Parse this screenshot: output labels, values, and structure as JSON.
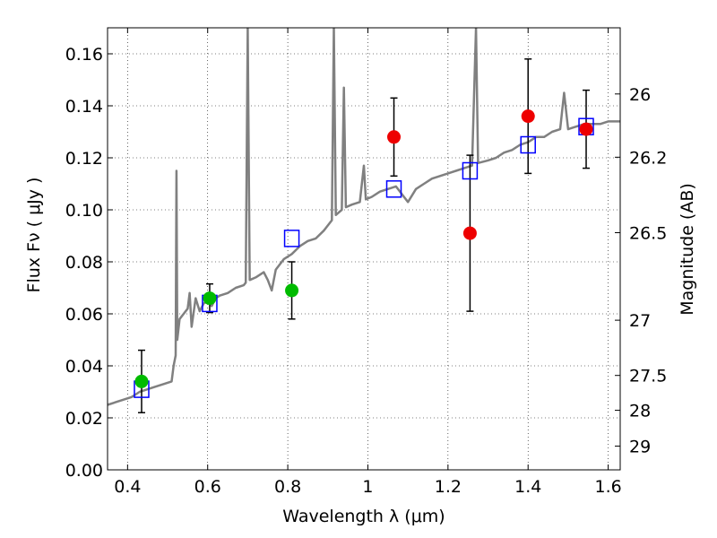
{
  "chart_data": {
    "type": "scatter",
    "title": "",
    "xlabel": "Wavelength  λ (μm)",
    "ylabel": "Flux  Fν  ( μJy )",
    "y2label": "Magnitude (AB)",
    "xlim": [
      0.35,
      1.63
    ],
    "ylim": [
      0.0,
      0.17
    ],
    "grid": true,
    "x_ticks": [
      {
        "value": 0.4,
        "label": "0.4"
      },
      {
        "value": 0.6,
        "label": "0.6"
      },
      {
        "value": 0.8,
        "label": "0.8"
      },
      {
        "value": 1.0,
        "label": "1"
      },
      {
        "value": 1.2,
        "label": "1.2"
      },
      {
        "value": 1.4,
        "label": "1.4"
      },
      {
        "value": 1.6,
        "label": "1.6"
      }
    ],
    "y_ticks": [
      {
        "value": 0.0,
        "label": "0.00"
      },
      {
        "value": 0.02,
        "label": "0.02"
      },
      {
        "value": 0.04,
        "label": "0.04"
      },
      {
        "value": 0.06,
        "label": "0.06"
      },
      {
        "value": 0.08,
        "label": "0.08"
      },
      {
        "value": 0.1,
        "label": "0.10"
      },
      {
        "value": 0.12,
        "label": "0.12"
      },
      {
        "value": 0.14,
        "label": "0.14"
      },
      {
        "value": 0.16,
        "label": "0.16"
      }
    ],
    "y2_ticks": [
      {
        "value": 26,
        "label": "26"
      },
      {
        "value": 26.2,
        "label": "26.2"
      },
      {
        "value": 26.5,
        "label": "26.5"
      },
      {
        "value": 27,
        "label": "27"
      },
      {
        "value": 27.5,
        "label": "27.5"
      },
      {
        "value": 28,
        "label": "28"
      },
      {
        "value": 29,
        "label": "29"
      }
    ],
    "colors": {
      "model": "#808080",
      "green": "#00bb00",
      "red": "#ee0000",
      "model_box": "#0000ff",
      "errorbar": "#000000"
    },
    "model_spectrum": [
      [
        0.35,
        0.025
      ],
      [
        0.37,
        0.026
      ],
      [
        0.39,
        0.027
      ],
      [
        0.41,
        0.028
      ],
      [
        0.43,
        0.03
      ],
      [
        0.45,
        0.031
      ],
      [
        0.47,
        0.032
      ],
      [
        0.49,
        0.033
      ],
      [
        0.51,
        0.034
      ],
      [
        0.515,
        0.04
      ],
      [
        0.52,
        0.044
      ],
      [
        0.522,
        0.115
      ],
      [
        0.524,
        0.05
      ],
      [
        0.53,
        0.058
      ],
      [
        0.54,
        0.06
      ],
      [
        0.55,
        0.062
      ],
      [
        0.555,
        0.068
      ],
      [
        0.56,
        0.055
      ],
      [
        0.57,
        0.066
      ],
      [
        0.58,
        0.061
      ],
      [
        0.59,
        0.064
      ],
      [
        0.6,
        0.065
      ],
      [
        0.61,
        0.063
      ],
      [
        0.62,
        0.066
      ],
      [
        0.63,
        0.067
      ],
      [
        0.65,
        0.068
      ],
      [
        0.67,
        0.07
      ],
      [
        0.69,
        0.071
      ],
      [
        0.695,
        0.072
      ],
      [
        0.7,
        0.17
      ],
      [
        0.705,
        0.073
      ],
      [
        0.72,
        0.074
      ],
      [
        0.74,
        0.076
      ],
      [
        0.75,
        0.073
      ],
      [
        0.76,
        0.069
      ],
      [
        0.77,
        0.077
      ],
      [
        0.79,
        0.081
      ],
      [
        0.81,
        0.083
      ],
      [
        0.83,
        0.086
      ],
      [
        0.85,
        0.088
      ],
      [
        0.87,
        0.089
      ],
      [
        0.89,
        0.092
      ],
      [
        0.91,
        0.096
      ],
      [
        0.915,
        0.17
      ],
      [
        0.92,
        0.098
      ],
      [
        0.935,
        0.1
      ],
      [
        0.94,
        0.147
      ],
      [
        0.945,
        0.101
      ],
      [
        0.96,
        0.102
      ],
      [
        0.98,
        0.103
      ],
      [
        0.99,
        0.117
      ],
      [
        0.995,
        0.104
      ],
      [
        1.01,
        0.105
      ],
      [
        1.03,
        0.107
      ],
      [
        1.05,
        0.108
      ],
      [
        1.07,
        0.109
      ],
      [
        1.09,
        0.105
      ],
      [
        1.1,
        0.103
      ],
      [
        1.12,
        0.108
      ],
      [
        1.14,
        0.11
      ],
      [
        1.16,
        0.112
      ],
      [
        1.18,
        0.113
      ],
      [
        1.2,
        0.114
      ],
      [
        1.22,
        0.115
      ],
      [
        1.24,
        0.116
      ],
      [
        1.26,
        0.117
      ],
      [
        1.27,
        0.17
      ],
      [
        1.275,
        0.118
      ],
      [
        1.3,
        0.119
      ],
      [
        1.32,
        0.12
      ],
      [
        1.34,
        0.122
      ],
      [
        1.36,
        0.123
      ],
      [
        1.38,
        0.125
      ],
      [
        1.4,
        0.126
      ],
      [
        1.42,
        0.128
      ],
      [
        1.44,
        0.128
      ],
      [
        1.46,
        0.13
      ],
      [
        1.48,
        0.131
      ],
      [
        1.49,
        0.145
      ],
      [
        1.5,
        0.131
      ],
      [
        1.52,
        0.132
      ],
      [
        1.54,
        0.133
      ],
      [
        1.56,
        0.133
      ],
      [
        1.58,
        0.133
      ],
      [
        1.6,
        0.134
      ],
      [
        1.62,
        0.134
      ],
      [
        1.63,
        0.134
      ]
    ],
    "model_points": [
      {
        "x": 0.435,
        "y": 0.031
      },
      {
        "x": 0.605,
        "y": 0.064
      },
      {
        "x": 0.81,
        "y": 0.089
      },
      {
        "x": 1.065,
        "y": 0.108
      },
      {
        "x": 1.255,
        "y": 0.115
      },
      {
        "x": 1.4,
        "y": 0.125
      },
      {
        "x": 1.545,
        "y": 0.132
      }
    ],
    "observed_green": [
      {
        "x": 0.435,
        "y": 0.034,
        "yerr": 0.012
      },
      {
        "x": 0.605,
        "y": 0.066,
        "yerr": 0.0055
      },
      {
        "x": 0.81,
        "y": 0.069,
        "yerr": 0.011
      }
    ],
    "observed_red": [
      {
        "x": 1.065,
        "y": 0.128,
        "yerr": 0.015
      },
      {
        "x": 1.255,
        "y": 0.091,
        "yerr": 0.03
      },
      {
        "x": 1.4,
        "y": 0.136,
        "yerr": 0.022
      },
      {
        "x": 1.545,
        "y": 0.131,
        "yerr": 0.015
      }
    ]
  }
}
